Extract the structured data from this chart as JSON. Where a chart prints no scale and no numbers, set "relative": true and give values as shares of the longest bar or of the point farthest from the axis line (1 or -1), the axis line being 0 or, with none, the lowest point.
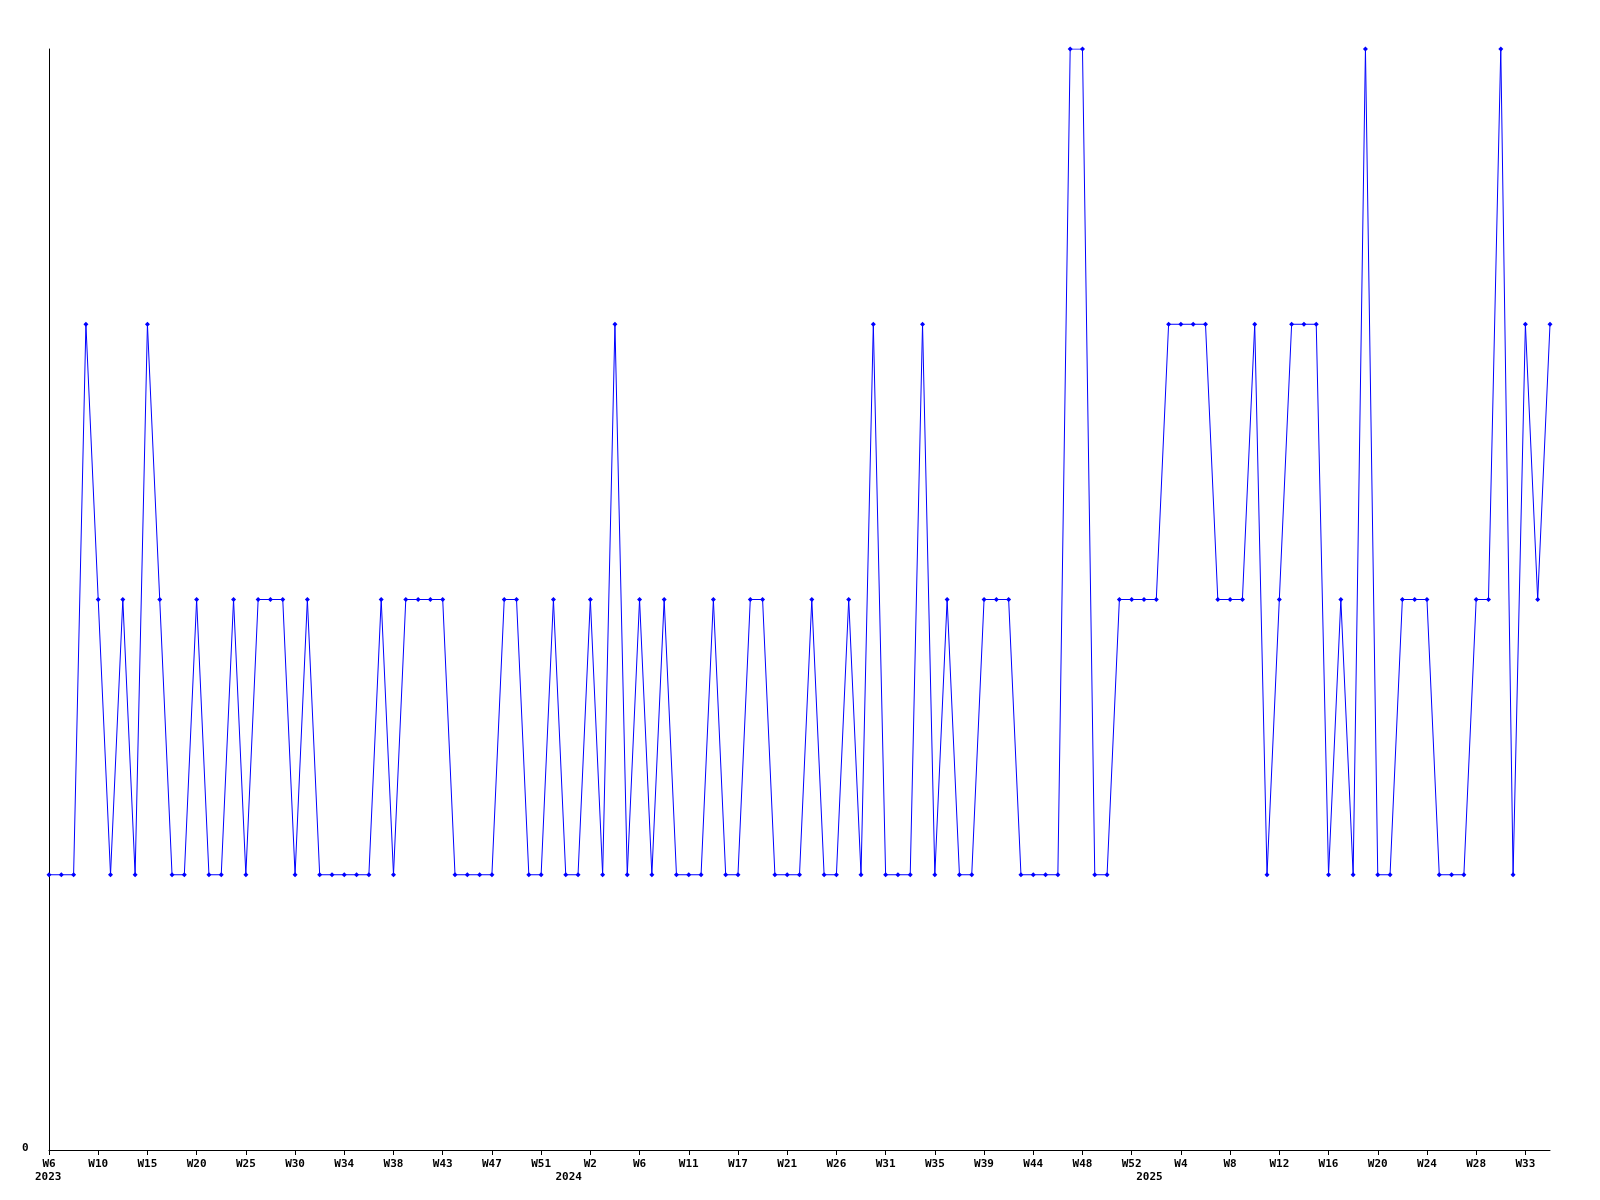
{
  "chart_data": {
    "type": "line",
    "relative": true,
    "grid": false,
    "marker": "diamond",
    "line_style": "solid",
    "categories": [
      "W6",
      null,
      null,
      null,
      "W10",
      null,
      null,
      null,
      "W15",
      null,
      null,
      null,
      "W20",
      null,
      null,
      null,
      "W25",
      null,
      null,
      null,
      "W30",
      null,
      null,
      null,
      "W34",
      null,
      null,
      null,
      "W38",
      null,
      null,
      null,
      "W43",
      null,
      null,
      null,
      "W47",
      null,
      null,
      null,
      "W51",
      null,
      null,
      null,
      "W2",
      null,
      null,
      null,
      "W6",
      null,
      null,
      null,
      "W11",
      null,
      null,
      null,
      "W17",
      null,
      null,
      null,
      "W21",
      null,
      null,
      null,
      "W26",
      null,
      null,
      null,
      "W31",
      null,
      null,
      null,
      "W35",
      null,
      null,
      null,
      "W39",
      null,
      null,
      null,
      "W44",
      null,
      null,
      null,
      "W48",
      null,
      null,
      null,
      "W52",
      null,
      null,
      null,
      "W4",
      null,
      null,
      null,
      "W8",
      null,
      null,
      null,
      "W12",
      null,
      null,
      null,
      "W16",
      null,
      null,
      null,
      "W20",
      null,
      null,
      null,
      "W24",
      null,
      null,
      null,
      "W28",
      null,
      null,
      null,
      "W33",
      null,
      null
    ],
    "series": [
      {
        "color": "#0000ff",
        "values": [
          0.25,
          0.25,
          0.25,
          0.75,
          0.5,
          0.25,
          0.5,
          0.25,
          0.75,
          0.5,
          0.25,
          0.25,
          0.5,
          0.25,
          0.25,
          0.5,
          0.25,
          0.5,
          0.5,
          0.5,
          0.25,
          0.5,
          0.25,
          0.25,
          0.25,
          0.25,
          0.25,
          0.5,
          0.25,
          0.5,
          0.5,
          0.5,
          0.5,
          0.25,
          0.25,
          0.25,
          0.25,
          0.5,
          0.5,
          0.25,
          0.25,
          0.5,
          0.25,
          0.25,
          0.5,
          0.25,
          0.75,
          0.25,
          0.5,
          0.25,
          0.5,
          0.25,
          0.25,
          0.25,
          0.5,
          0.25,
          0.25,
          0.5,
          0.5,
          0.25,
          0.25,
          0.25,
          0.5,
          0.25,
          0.25,
          0.5,
          0.25,
          0.75,
          0.25,
          0.25,
          0.25,
          0.75,
          0.25,
          0.5,
          0.25,
          0.25,
          0.5,
          0.5,
          0.5,
          0.25,
          0.25,
          0.25,
          0.25,
          1,
          1,
          0.25,
          0.25,
          0.5,
          0.5,
          0.5,
          0.5,
          0.75,
          0.75,
          0.75,
          0.75,
          0.5,
          0.5,
          0.5,
          0.75,
          0.25,
          0.5,
          0.75,
          0.75,
          0.75,
          0.25,
          0.5,
          0.25,
          1,
          0.25,
          0.25,
          0.5,
          0.5,
          0.5,
          0.25,
          0.25,
          0.25,
          0.5,
          0.5,
          1,
          0.25,
          0.75,
          0.5,
          0.75
        ]
      }
    ],
    "annotations": [
      "0",
      "2023",
      "2024",
      "2025"
    ]
  }
}
